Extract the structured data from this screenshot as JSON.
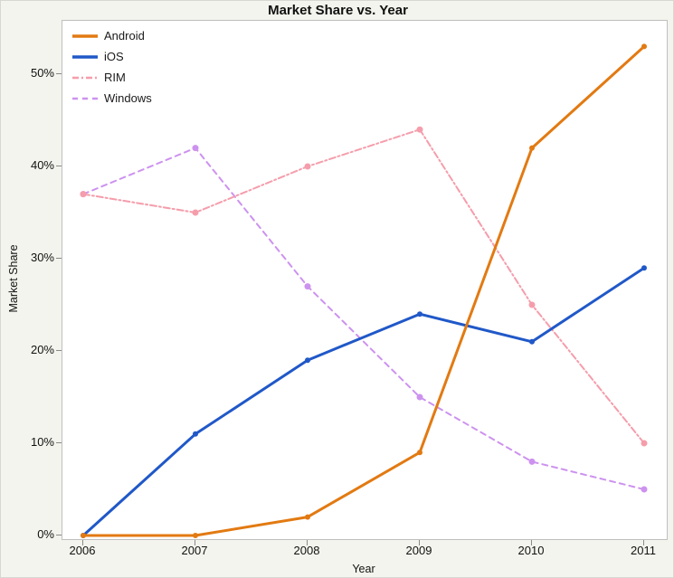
{
  "title": "Market Share vs. Year",
  "chart_data": {
    "type": "line",
    "title": "Market Share vs. Year",
    "xlabel": "Year",
    "ylabel": "Market Share",
    "categories": [
      "2006",
      "2007",
      "2008",
      "2009",
      "2010",
      "2011"
    ],
    "yticks": [
      {
        "label": "0%",
        "value": 0
      },
      {
        "label": "10%",
        "value": 10
      },
      {
        "label": "20%",
        "value": 20
      },
      {
        "label": "30%",
        "value": 30
      },
      {
        "label": "40%",
        "value": 40
      },
      {
        "label": "50%",
        "value": 50
      }
    ],
    "ylim": [
      0,
      56
    ],
    "grid": false,
    "legend_position": "top-left-inside",
    "plot_background": "#FFFFFF",
    "page_background": "#F4F4EE",
    "axis_color": "#BFBFBF",
    "series": [
      {
        "name": "Android",
        "color": "#E27A12",
        "style": "solid",
        "width": 3,
        "marker_r": 3,
        "values": [
          0,
          0,
          2,
          9,
          42,
          53
        ]
      },
      {
        "name": "iOS",
        "color": "#2058C8",
        "style": "solid",
        "width": 3,
        "marker_r": 3,
        "values": [
          0,
          11,
          19,
          24,
          21,
          29
        ]
      },
      {
        "name": "RIM",
        "color": "#F59DAB",
        "style": "dash-dot",
        "width": 2,
        "marker_r": 3.5,
        "values": [
          37,
          35,
          40,
          44,
          25,
          10
        ]
      },
      {
        "name": "Windows",
        "color": "#CD92EF",
        "style": "dashed",
        "width": 2,
        "marker_r": 3.5,
        "values": [
          37,
          42,
          27,
          15,
          8,
          5
        ]
      }
    ]
  }
}
